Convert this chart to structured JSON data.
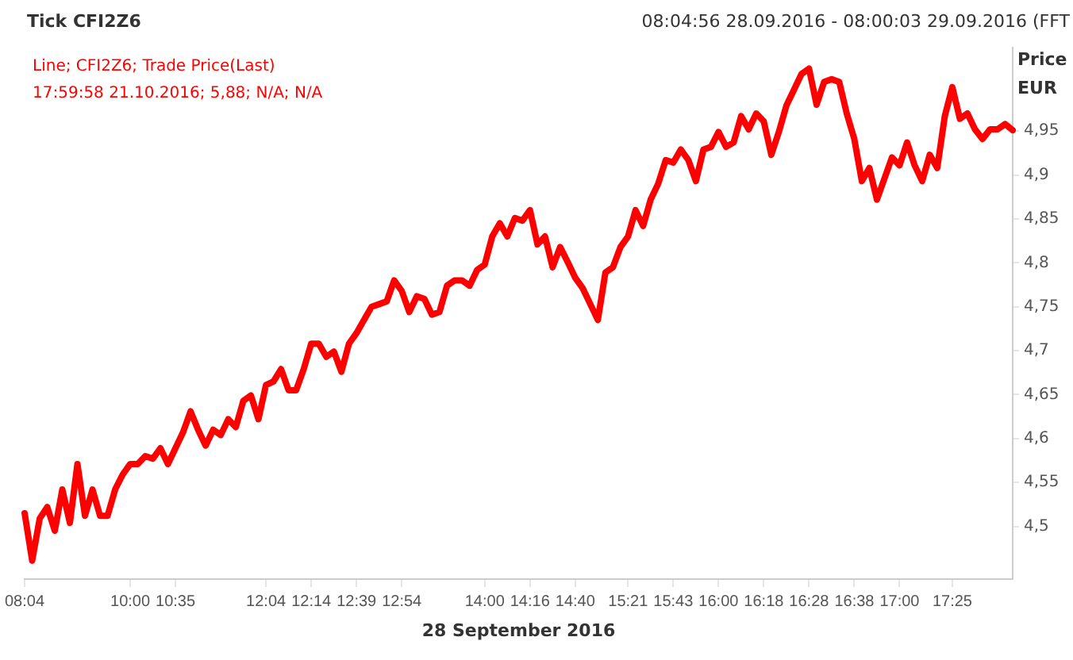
{
  "chart_data": {
    "type": "line",
    "title": "Tick CFI2Z6",
    "subtitle": "08:04:56 28.09.2016 - 08:00:03 29.09.2016 (FFT",
    "xlabel": "28 September 2016",
    "ylabel": "Price EUR",
    "annotations": [
      "17:59:58 21.10.2016; 5,88; N/A; N/A"
    ],
    "legend": "top left",
    "grid": false,
    "marker": "none",
    "line_style": "solid",
    "categories": [
      "08:04",
      null,
      null,
      null,
      null,
      null,
      null,
      null,
      null,
      null,
      null,
      null,
      null,
      null,
      "10:00",
      null,
      null,
      null,
      null,
      null,
      "10:35",
      null,
      null,
      null,
      null,
      null,
      null,
      null,
      null,
      null,
      null,
      null,
      "12:04",
      null,
      null,
      null,
      null,
      null,
      "12:14",
      null,
      null,
      null,
      null,
      null,
      "12:39",
      null,
      null,
      null,
      null,
      null,
      "12:54",
      null,
      null,
      null,
      null,
      null,
      null,
      null,
      null,
      null,
      null,
      "14:00",
      null,
      null,
      null,
      null,
      null,
      "14:16",
      null,
      null,
      null,
      null,
      null,
      "14:40",
      null,
      null,
      null,
      null,
      null,
      null,
      "15:21",
      null,
      null,
      null,
      null,
      null,
      "15:43",
      null,
      null,
      null,
      null,
      null,
      "16:00",
      null,
      null,
      null,
      null,
      null,
      "16:18",
      null,
      null,
      null,
      null,
      null,
      "16:28",
      null,
      null,
      null,
      null,
      null,
      "16:38",
      null,
      null,
      null,
      null,
      null,
      "17:00",
      null,
      null,
      null,
      null,
      null,
      null,
      "17:25",
      null,
      null,
      null,
      null,
      null,
      null,
      null,
      null
    ],
    "ylim": [
      4.44,
      5.045
    ],
    "yticks": [
      {
        "value": 4.5,
        "label": "4,5"
      },
      {
        "value": 4.55,
        "label": "4,55"
      },
      {
        "value": 4.6,
        "label": "4,6"
      },
      {
        "value": 4.65,
        "label": "4,65"
      },
      {
        "value": 4.7,
        "label": "4,7"
      },
      {
        "value": 4.75,
        "label": "4,75"
      },
      {
        "value": 4.8,
        "label": "4,8"
      },
      {
        "value": 4.85,
        "label": "4,85"
      },
      {
        "value": 4.9,
        "label": "4,9"
      },
      {
        "value": 4.95,
        "label": "4,95"
      }
    ],
    "series": [
      {
        "name": "Line; CFI2Z6; Trade Price(Last)",
        "color": "#ff0000",
        "values": [
          4.515,
          4.461,
          4.509,
          4.522,
          4.495,
          4.542,
          4.504,
          4.571,
          4.512,
          4.542,
          4.512,
          4.512,
          4.542,
          4.559,
          4.571,
          4.571,
          4.58,
          4.577,
          4.589,
          4.571,
          4.589,
          4.607,
          4.631,
          4.61,
          4.592,
          4.61,
          4.604,
          4.622,
          4.613,
          4.643,
          4.649,
          4.622,
          4.661,
          4.665,
          4.679,
          4.655,
          4.655,
          4.679,
          4.708,
          4.708,
          4.693,
          4.699,
          4.676,
          4.708,
          4.72,
          4.735,
          4.75,
          4.753,
          4.756,
          4.78,
          4.768,
          4.744,
          4.762,
          4.759,
          4.741,
          4.744,
          4.774,
          4.78,
          4.78,
          4.774,
          4.792,
          4.798,
          4.83,
          4.845,
          4.83,
          4.851,
          4.848,
          4.86,
          4.821,
          4.83,
          4.795,
          4.818,
          4.801,
          4.783,
          4.771,
          4.753,
          4.735,
          4.789,
          4.795,
          4.818,
          4.83,
          4.86,
          4.842,
          4.872,
          4.89,
          4.917,
          4.914,
          4.929,
          4.917,
          4.893,
          4.929,
          4.932,
          4.949,
          4.932,
          4.937,
          4.967,
          4.952,
          4.97,
          4.961,
          4.923,
          4.949,
          4.979,
          4.997,
          5.015,
          5.021,
          4.98,
          5.006,
          5.009,
          5.006,
          4.97,
          4.941,
          4.893,
          4.908,
          4.872,
          4.896,
          4.92,
          4.911,
          4.937,
          4.911,
          4.893,
          4.923,
          4.908,
          4.967,
          5.0,
          4.964,
          4.97,
          4.952,
          4.941,
          4.952,
          4.952,
          4.958,
          4.951
        ]
      }
    ]
  }
}
